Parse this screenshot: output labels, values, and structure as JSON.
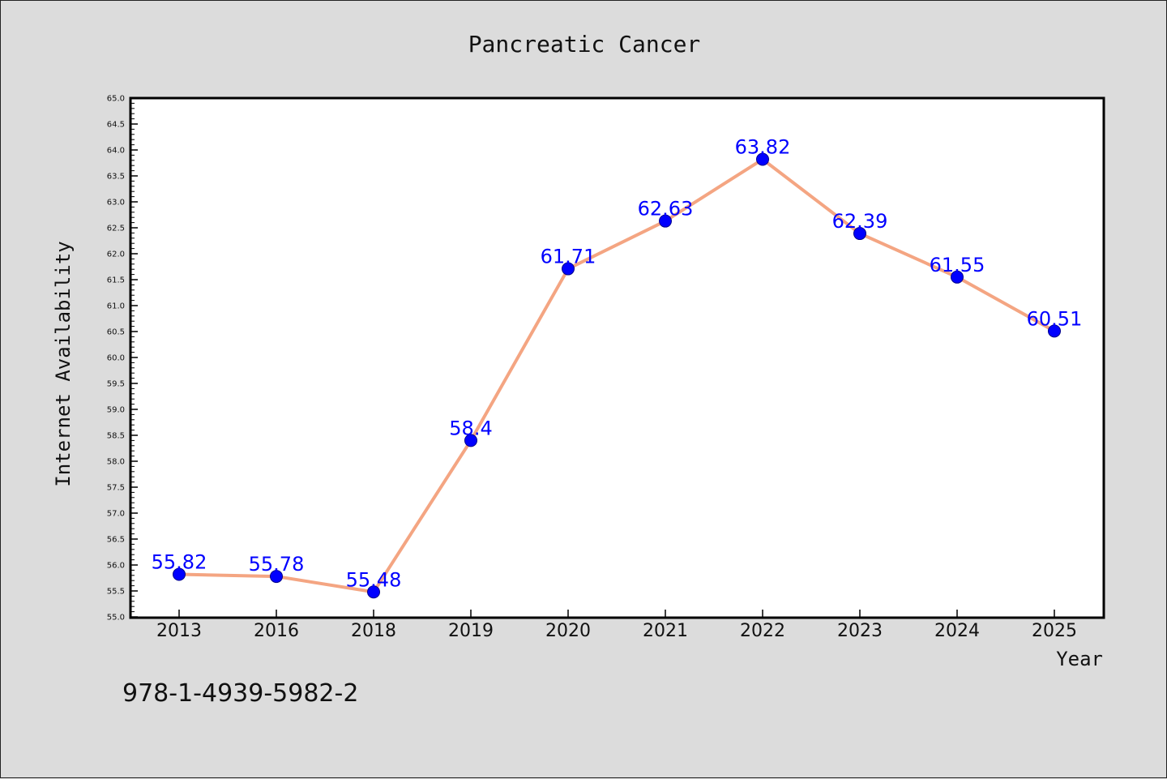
{
  "chart_data": {
    "type": "line",
    "title": "Pancreatic Cancer",
    "xlabel": "Year",
    "ylabel": "Internet Availability",
    "categories": [
      "2013",
      "2016",
      "2018",
      "2019",
      "2020",
      "2021",
      "2022",
      "2023",
      "2024",
      "2025"
    ],
    "values": [
      55.82,
      55.78,
      55.48,
      58.4,
      61.71,
      62.63,
      63.82,
      62.39,
      61.55,
      60.51
    ],
    "data_labels": [
      "55.82",
      "55.78",
      "55.48",
      "58.4",
      "61.71",
      "62.63",
      "63.82",
      "62.39",
      "61.55",
      "60.51"
    ],
    "ylim": [
      55.0,
      65.0
    ],
    "yticks": [
      "55.0",
      "55.5",
      "56.0",
      "56.5",
      "57.0",
      "57.5",
      "58.0",
      "58.5",
      "59.0",
      "59.5",
      "60.0",
      "60.5",
      "61.0",
      "61.5",
      "62.0",
      "62.5",
      "63.0",
      "63.5",
      "64.0",
      "64.5",
      "65.0"
    ],
    "grid": false,
    "colors": {
      "line": "#f4a582",
      "marker": "#0000ff",
      "label": "#0000ff",
      "background": "#dcdcdc",
      "plot_bg": "#ffffff"
    }
  },
  "footer": {
    "isbn": "978-1-4939-5982-2"
  }
}
